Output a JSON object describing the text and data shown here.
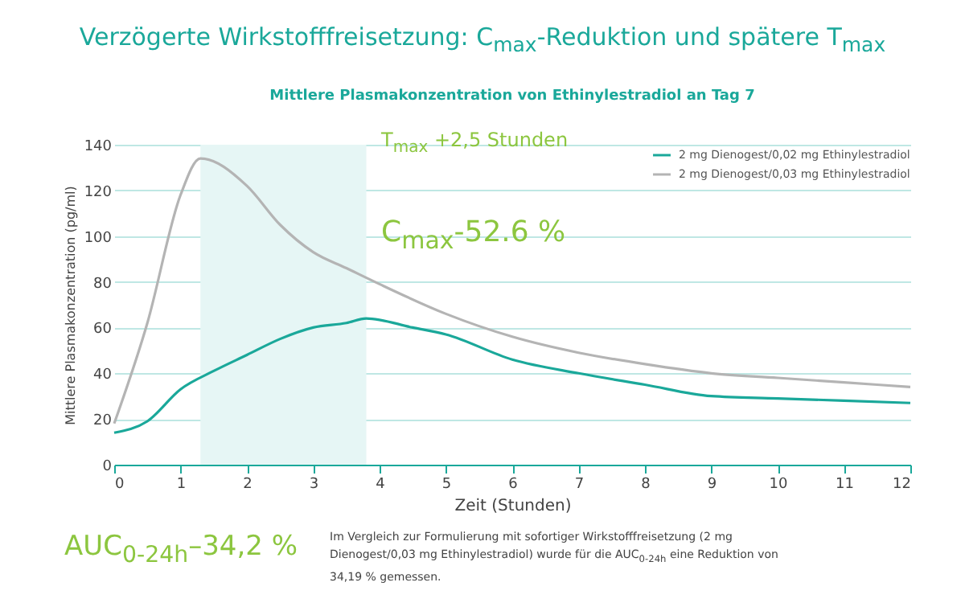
{
  "chart_data": {
    "type": "line",
    "title": "Verzögerte Wirkstofffreisetzung: C$_{max}$-Reduktion und spätere T$_{max}$",
    "subtitle": "Mittlere Plasmakonzentration von Ethinylestradiol an Tag 7",
    "xlabel": "Zeit (Stunden)",
    "ylabel": "Mittlere Plasmakonzentration (pg/ml)",
    "series": [
      {
        "name": "2 mg Dienogest/0,02 mg Ethinylestradiol",
        "color": "#1aa89a",
        "x": [
          0,
          0.5,
          1,
          1.5,
          2,
          2.5,
          3,
          3.5,
          3.8,
          4.5,
          5,
          6,
          7,
          8,
          9,
          10,
          11,
          12
        ],
        "values": [
          14,
          19,
          33,
          41,
          48,
          55,
          60,
          62,
          64,
          60,
          57,
          46,
          40,
          35,
          30,
          29,
          28,
          27
        ]
      },
      {
        "name": "2 mg Dienogest/0,03 mg Ethinylestradiol",
        "color": "#b4b4b4",
        "x": [
          0,
          0.5,
          1,
          1.3,
          2,
          2.5,
          3,
          3.5,
          4,
          5,
          6,
          7,
          8,
          9,
          10,
          11,
          12
        ],
        "values": [
          18,
          62,
          118,
          134,
          122,
          105,
          93,
          86,
          79,
          66,
          56,
          49,
          44,
          40,
          38,
          36,
          34
        ]
      }
    ],
    "xlim": [
      0,
      12
    ],
    "xticks": [
      0,
      1,
      2,
      3,
      4,
      5,
      6,
      7,
      8,
      9,
      10,
      11,
      12
    ],
    "ylim": [
      0,
      140
    ],
    "yticks": [
      0,
      20,
      40,
      60,
      80,
      100,
      120,
      140
    ],
    "bands": [
      {
        "axis": "x",
        "from": 1.3,
        "to": 3.8,
        "color": "#e6f6f5"
      }
    ],
    "grid": "y",
    "legend": "top right",
    "annotations": [
      "T$_{max}$ +2,5 Stunden",
      "C$_{max}$-52.6 %",
      "AUC$_{0-24h}$–34,2 %",
      "Im Vergleich zur Formulierung mit sofortiger Wirkstofffreisetzung (2 mg Dienogest/0,03 mg Ethinylestradiol) wurde für die AUC$_{0-24h}$ eine Reduktion von 34,19 % gemessen."
    ]
  }
}
